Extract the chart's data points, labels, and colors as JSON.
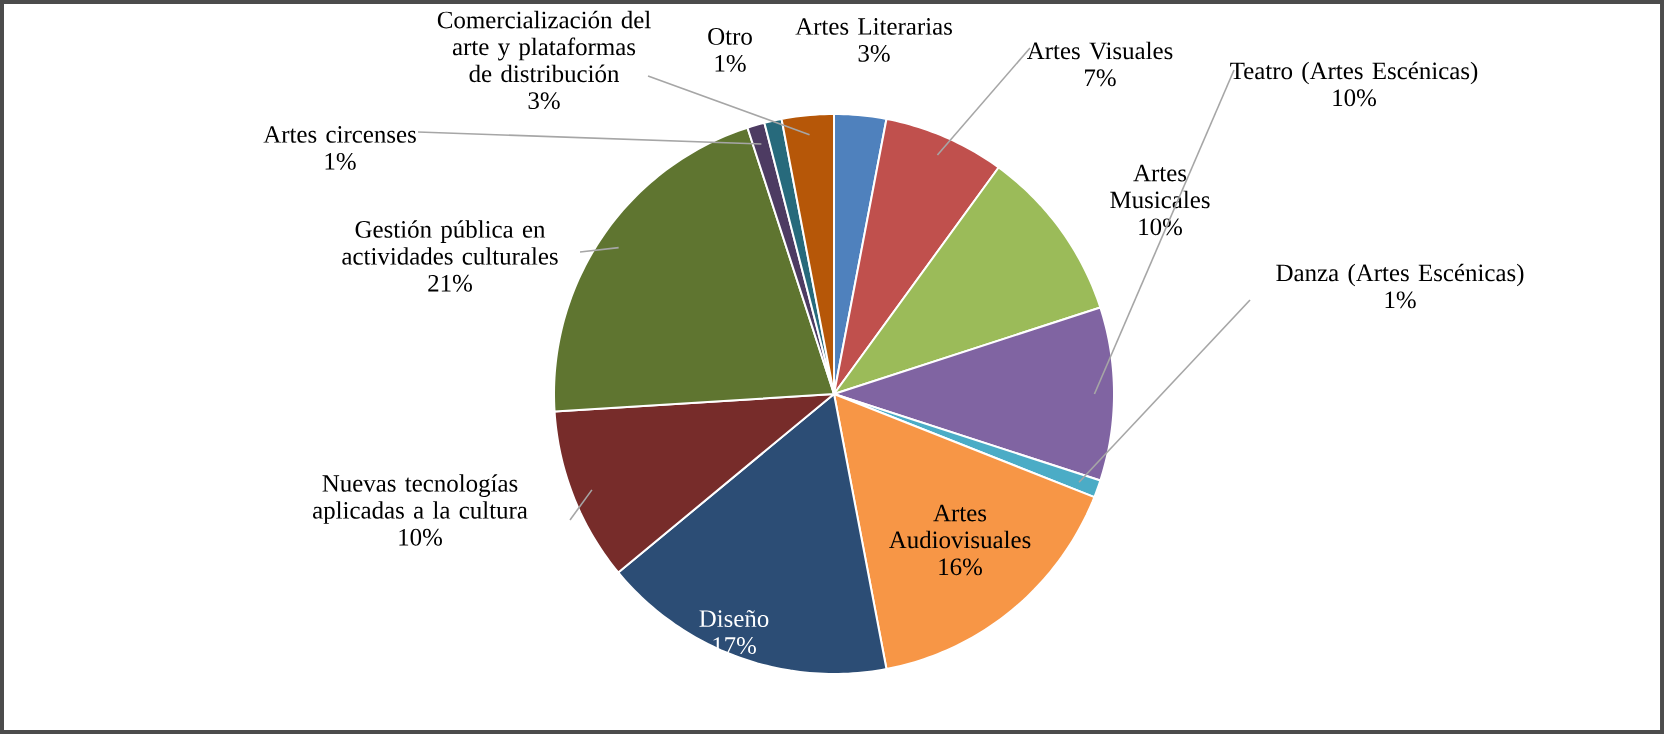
{
  "chart_data": {
    "type": "pie",
    "categories": [
      "Artes Literarias",
      "Artes Visuales",
      "Artes Musicales",
      "Teatro (Artes Escénicas)",
      "Danza (Artes Escénicas)",
      "Artes Audiovisuales",
      "Diseño",
      "Nuevas tecnologías aplicadas a la cultura",
      "Gestión pública en actividades culturales",
      "Artes circenses",
      "Otro",
      "Comercialización del arte y plataformas de distribución"
    ],
    "values": [
      3,
      7,
      10,
      10,
      1,
      16,
      17,
      10,
      21,
      1,
      1,
      3
    ],
    "value_labels": [
      "3%",
      "7%",
      "10%",
      "10%",
      "1%",
      "16%",
      "17%",
      "10%",
      "21%",
      "1%",
      "1%",
      "3%"
    ],
    "colors": [
      "#4f81bd",
      "#c0504d",
      "#9bbb59",
      "#8064a2",
      "#4bacc6",
      "#f79646",
      "#2c4d75",
      "#772c2a",
      "#5f7530",
      "#4d3b62",
      "#276a7c",
      "#b65708"
    ]
  }
}
